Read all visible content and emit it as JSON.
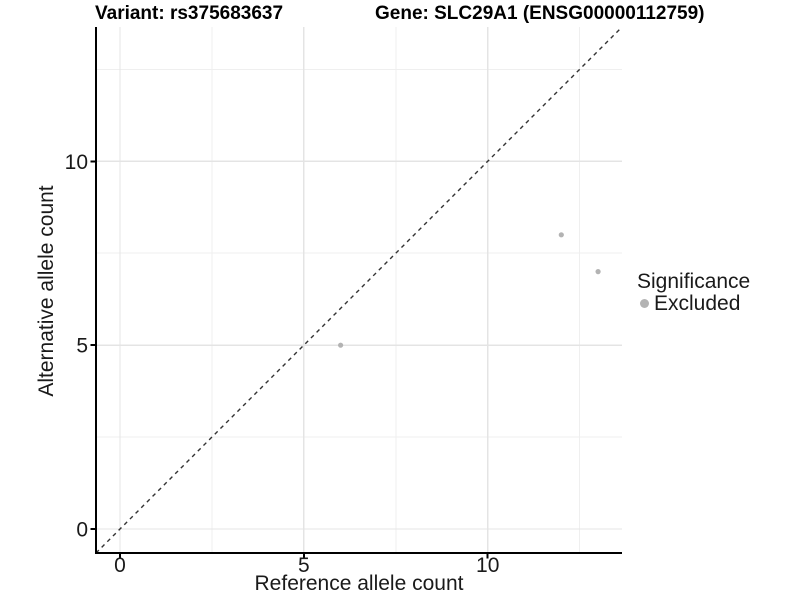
{
  "titles": {
    "variant": "Variant: rs375683637",
    "gene": "Gene: SLC29A1 (ENSG00000112759)"
  },
  "axes": {
    "x_title": "Reference allele count",
    "y_title": "Alternative allele count"
  },
  "legend": {
    "title": "Significance",
    "items": [
      {
        "label": "Excluded",
        "color": "#b3b3b3",
        "icon": "filled-circle"
      }
    ]
  },
  "colors": {
    "background": "#ffffff",
    "grid_major": "#e4e4e4",
    "grid_minor": "#efefef",
    "axis_line": "#000000",
    "tick_mark": "#000000",
    "text": "#1a1a1a",
    "point": "#b3b3b3",
    "identity_line": "#333333"
  },
  "chart_data": {
    "type": "scatter",
    "title": "Variant: rs375683637 | Gene: SLC29A1 (ENSG00000112759)",
    "xlabel": "Reference allele count",
    "ylabel": "Alternative allele count",
    "xlim": [
      -0.65,
      13.65
    ],
    "ylim": [
      -0.65,
      13.65
    ],
    "x_ticks": [
      0,
      5,
      10
    ],
    "y_ticks": [
      0,
      5,
      10
    ],
    "x_tick_labels": [
      "0",
      "5",
      "10"
    ],
    "y_tick_labels": [
      "0",
      "5",
      "10"
    ],
    "x_minor_gridlines": [
      2.5,
      7.5,
      12.5
    ],
    "y_minor_gridlines": [
      2.5,
      7.5,
      12.5
    ],
    "grid": true,
    "legend_position": "right",
    "series": [
      {
        "name": "Excluded",
        "color": "#b3b3b3",
        "marker": "circle",
        "points": [
          [
            6,
            5
          ],
          [
            12,
            8
          ],
          [
            13,
            7
          ]
        ]
      }
    ],
    "identity_line": {
      "style": "dashed",
      "from": [
        -0.65,
        -0.65
      ],
      "to": [
        13.65,
        13.65
      ]
    }
  }
}
